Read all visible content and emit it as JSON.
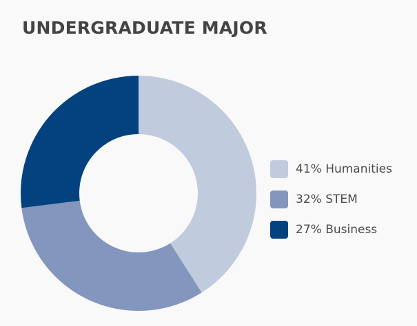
{
  "chart_data": {
    "type": "pie",
    "title": "UNDERGRADUATE MAJOR",
    "donut": true,
    "start": "top, clockwise",
    "legend_position": "right",
    "slices": [
      {
        "label": "41% Humanities",
        "value": 41,
        "color": "#c0cbdd"
      },
      {
        "label": "32% STEM",
        "value": 32,
        "color": "#8396bd"
      },
      {
        "label": "27% Business",
        "value": 27,
        "color": "#03427f"
      }
    ]
  }
}
